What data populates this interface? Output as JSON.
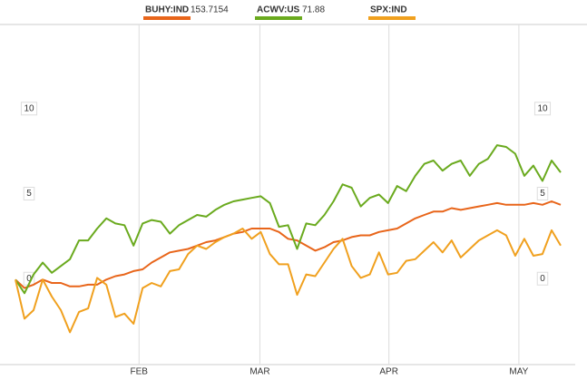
{
  "chart_data": {
    "type": "line",
    "legend": [
      {
        "name": "BUHY:IND",
        "value": "153.7154"
      },
      {
        "name": "ACWV:US",
        "value": "71.88"
      },
      {
        "name": "SPX:IND"
      }
    ],
    "x": [
      0,
      1,
      2,
      3,
      4,
      5,
      6,
      7,
      8,
      9,
      10,
      11,
      12,
      13,
      14,
      15,
      16,
      17,
      18,
      19,
      20,
      21,
      22,
      23,
      24,
      25,
      26,
      27,
      28,
      29,
      30,
      31,
      32,
      33,
      34,
      35,
      36,
      37,
      38,
      39,
      40,
      41,
      42,
      43,
      44,
      45,
      46,
      47,
      48,
      49,
      50,
      51,
      52,
      53,
      54,
      55,
      56,
      57,
      58,
      59,
      60
    ],
    "series": [
      {
        "name": "BUHY:IND",
        "color": "#e8651a",
        "values": [
          0,
          -0.5,
          -0.3,
          0,
          -0.2,
          -0.2,
          -0.4,
          -0.4,
          -0.3,
          -0.3,
          0,
          0.2,
          0.3,
          0.5,
          0.6,
          1.0,
          1.3,
          1.6,
          1.7,
          1.8,
          2.0,
          2.2,
          2.3,
          2.5,
          2.7,
          2.8,
          3.0,
          3.0,
          3.0,
          2.8,
          2.4,
          2.3,
          2.0,
          1.7,
          1.9,
          2.2,
          2.3,
          2.5,
          2.6,
          2.6,
          2.8,
          2.9,
          3.0,
          3.3,
          3.6,
          3.8,
          4.0,
          4.0,
          4.2,
          4.1,
          4.2,
          4.3,
          4.4,
          4.5,
          4.4,
          4.4,
          4.4,
          4.5,
          4.4,
          4.6,
          4.4
        ]
      },
      {
        "name": "ACWV:US",
        "color": "#6aaa1e",
        "values": [
          0,
          -0.8,
          0.3,
          1.0,
          0.4,
          0.8,
          1.2,
          2.3,
          2.3,
          3.0,
          3.6,
          3.3,
          3.2,
          2.0,
          3.3,
          3.5,
          3.4,
          2.7,
          3.2,
          3.5,
          3.8,
          3.7,
          4.1,
          4.4,
          4.6,
          4.7,
          4.8,
          4.9,
          4.5,
          3.1,
          3.2,
          1.8,
          3.3,
          3.2,
          3.8,
          4.6,
          5.6,
          5.4,
          4.3,
          4.8,
          5.0,
          4.5,
          5.5,
          5.2,
          6.1,
          6.8,
          7.0,
          6.4,
          6.8,
          7.0,
          6.1,
          6.8,
          7.1,
          7.9,
          7.8,
          7.4,
          6.1,
          6.7,
          5.8,
          7.0,
          6.3
        ]
      },
      {
        "name": "SPX:IND",
        "color": "#f0a01e",
        "values": [
          0,
          -2.3,
          -1.8,
          0,
          -1.0,
          -1.8,
          -3.1,
          -1.9,
          -1.7,
          0.1,
          -0.3,
          -2.2,
          -2.0,
          -2.6,
          -0.5,
          -0.2,
          -0.4,
          0.5,
          0.6,
          1.5,
          2.0,
          1.8,
          2.2,
          2.5,
          2.7,
          3.0,
          2.4,
          2.8,
          1.5,
          0.9,
          0.9,
          -0.9,
          0.3,
          0.2,
          1.0,
          1.8,
          2.4,
          0.8,
          0.1,
          0.3,
          1.6,
          0.3,
          0.4,
          1.1,
          1.2,
          1.7,
          2.2,
          1.6,
          2.3,
          1.3,
          1.8,
          2.3,
          2.6,
          2.9,
          2.6,
          1.4,
          2.4,
          1.4,
          1.5,
          2.9,
          2.0
        ]
      }
    ],
    "xlim": [
      -0.2,
      61.4
    ],
    "xticks": [
      {
        "value": 13.6,
        "label": "FEB"
      },
      {
        "value": 26.9,
        "label": "MAR"
      },
      {
        "value": 41.1,
        "label": "APR"
      },
      {
        "value": 55.4,
        "label": "MAY"
      }
    ],
    "ylim": [
      -5,
      15
    ],
    "yticks": [
      0,
      5,
      10
    ],
    "grid": true
  }
}
